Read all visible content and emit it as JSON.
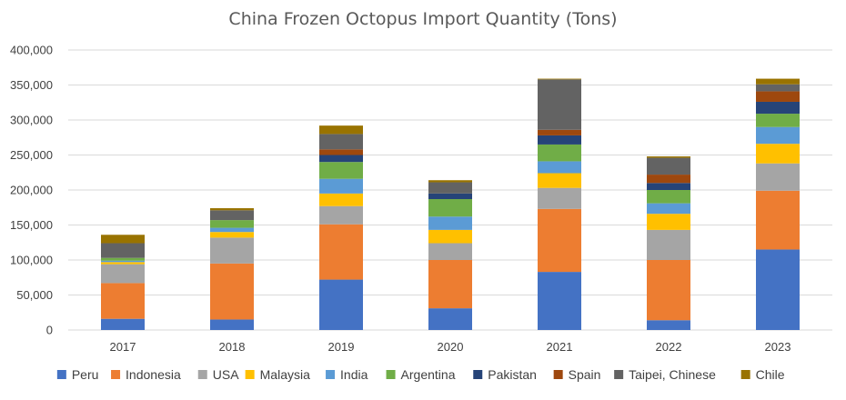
{
  "chart_data": {
    "type": "bar",
    "stacked": true,
    "title": "China Frozen Octopus Import Quantity (Tons)",
    "xlabel": "",
    "ylabel": "",
    "categories": [
      "2017",
      "2018",
      "2019",
      "2020",
      "2021",
      "2022",
      "2023"
    ],
    "ylim": [
      0,
      400000
    ],
    "yticks": [
      0,
      50000,
      100000,
      150000,
      200000,
      250000,
      300000,
      350000,
      400000
    ],
    "ytick_labels": [
      "0",
      "50,000",
      "100,000",
      "150,000",
      "200,000",
      "250,000",
      "300,000",
      "350,000",
      "400,000"
    ],
    "grid": true,
    "legend_position": "bottom",
    "series": [
      {
        "name": "Peru",
        "color": "#4472C4",
        "values": [
          16000,
          15000,
          72000,
          31000,
          83000,
          14000,
          115000
        ]
      },
      {
        "name": "Indonesia",
        "color": "#ED7D31",
        "values": [
          51000,
          80000,
          79000,
          69000,
          90000,
          86000,
          84000
        ]
      },
      {
        "name": "USA",
        "color": "#A5A5A5",
        "values": [
          27000,
          37000,
          26000,
          24000,
          30000,
          43000,
          39000
        ]
      },
      {
        "name": "Malaysia",
        "color": "#FFC000",
        "values": [
          3000,
          8000,
          18000,
          19000,
          21000,
          23000,
          28000
        ]
      },
      {
        "name": "India",
        "color": "#5B9BD5",
        "values": [
          2000,
          6000,
          21000,
          19000,
          17000,
          15000,
          24000
        ]
      },
      {
        "name": "Argentina",
        "color": "#70AD47",
        "values": [
          4000,
          11000,
          24000,
          25000,
          24000,
          19000,
          19000
        ]
      },
      {
        "name": "Pakistan",
        "color": "#264478",
        "values": [
          0,
          0,
          10000,
          8000,
          13000,
          10000,
          17000
        ]
      },
      {
        "name": "Spain",
        "color": "#9E480E",
        "values": [
          0,
          0,
          8000,
          0,
          8000,
          12000,
          15000
        ]
      },
      {
        "name": "Taipei, Chinese",
        "color": "#636363",
        "values": [
          21000,
          14000,
          22000,
          16000,
          72000,
          24000,
          10000
        ]
      },
      {
        "name": "Chile",
        "color": "#997300",
        "values": [
          12000,
          3000,
          12000,
          3000,
          1000,
          2000,
          8000
        ]
      }
    ]
  }
}
